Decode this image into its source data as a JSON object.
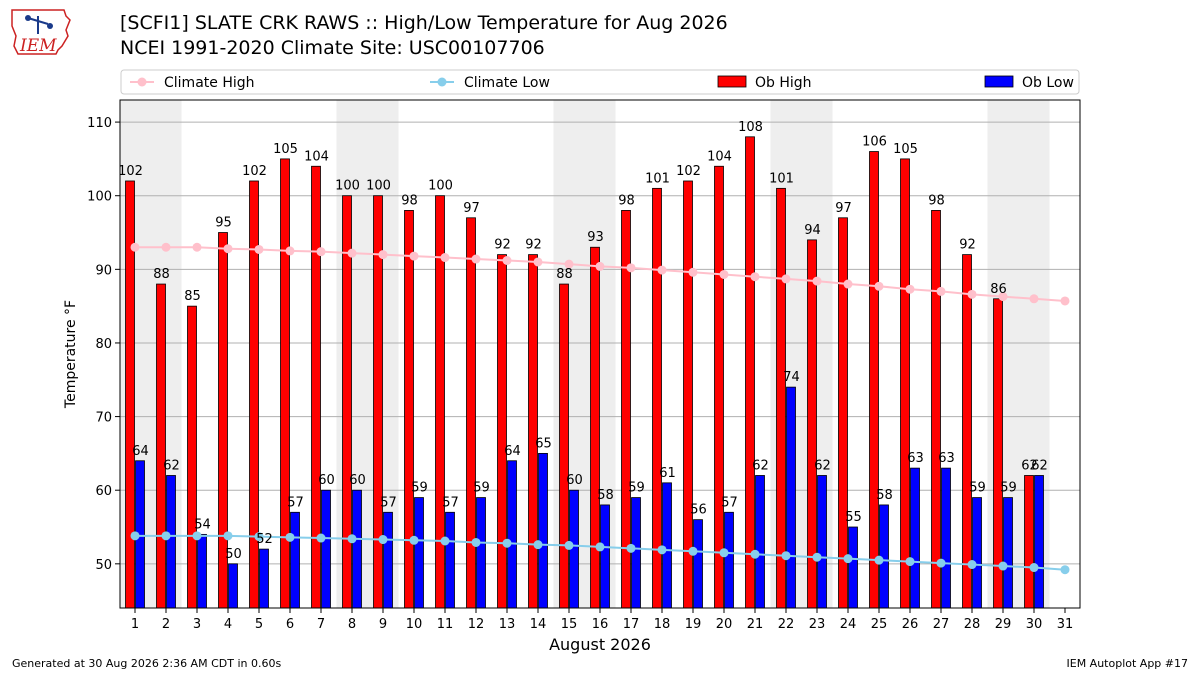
{
  "header": {
    "title_line1": "[SCFI1] SLATE CRK RAWS :: High/Low Temperature for Aug 2026",
    "title_line2": "NCEI 1991-2020 Climate Site: USC00107706",
    "logo_text": "IEM"
  },
  "footer": {
    "generated": "Generated at 30 Aug 2026 2:36 AM CDT in 0.60s",
    "app": "IEM Autoplot App #17"
  },
  "colors": {
    "ob_high": "#ff0000",
    "ob_low": "#0000ff",
    "climate_high": "#ffc0cb",
    "climate_low": "#87ceeb",
    "weekend_band": "#eeeeee"
  },
  "chart_data": {
    "type": "bar",
    "xlabel": "August 2026",
    "ylabel": "Temperature °F",
    "ylim": [
      44,
      113
    ],
    "yticks": [
      50,
      60,
      70,
      80,
      90,
      100,
      110
    ],
    "grid": true,
    "legend_position": "top",
    "categories": [
      1,
      2,
      3,
      4,
      5,
      6,
      7,
      8,
      9,
      10,
      11,
      12,
      13,
      14,
      15,
      16,
      17,
      18,
      19,
      20,
      21,
      22,
      23,
      24,
      25,
      26,
      27,
      28,
      29,
      30,
      31
    ],
    "shaded_days": [
      1,
      2,
      8,
      9,
      15,
      16,
      22,
      23,
      29,
      30
    ],
    "series": [
      {
        "name": "Climate High",
        "type": "line",
        "values": [
          93,
          93,
          93,
          92.8,
          92.7,
          92.5,
          92.4,
          92.2,
          92.0,
          91.8,
          91.6,
          91.4,
          91.2,
          91.0,
          90.7,
          90.4,
          90.2,
          89.9,
          89.6,
          89.3,
          89.0,
          88.7,
          88.4,
          88.0,
          87.7,
          87.3,
          87.0,
          86.6,
          86.3,
          86.0,
          85.7
        ]
      },
      {
        "name": "Climate Low",
        "type": "line",
        "values": [
          53.8,
          53.8,
          53.8,
          53.8,
          53.7,
          53.6,
          53.5,
          53.4,
          53.3,
          53.2,
          53.1,
          52.9,
          52.8,
          52.6,
          52.5,
          52.3,
          52.1,
          51.9,
          51.7,
          51.5,
          51.3,
          51.1,
          50.9,
          50.7,
          50.5,
          50.3,
          50.1,
          49.9,
          49.7,
          49.5,
          49.2
        ]
      },
      {
        "name": "Ob High",
        "type": "bar",
        "values": [
          102,
          88,
          85,
          95,
          102,
          105,
          104,
          100,
          100,
          98,
          100,
          97,
          92,
          92,
          88,
          93,
          98,
          101,
          102,
          104,
          108,
          101,
          94,
          97,
          106,
          105,
          98,
          92,
          86,
          62,
          null
        ]
      },
      {
        "name": "Ob Low",
        "type": "bar",
        "values": [
          64,
          62,
          54,
          50,
          52,
          57,
          60,
          60,
          57,
          59,
          57,
          59,
          64,
          65,
          60,
          58,
          59,
          61,
          56,
          57,
          62,
          74,
          62,
          55,
          58,
          63,
          63,
          59,
          59,
          62,
          null
        ]
      }
    ]
  }
}
